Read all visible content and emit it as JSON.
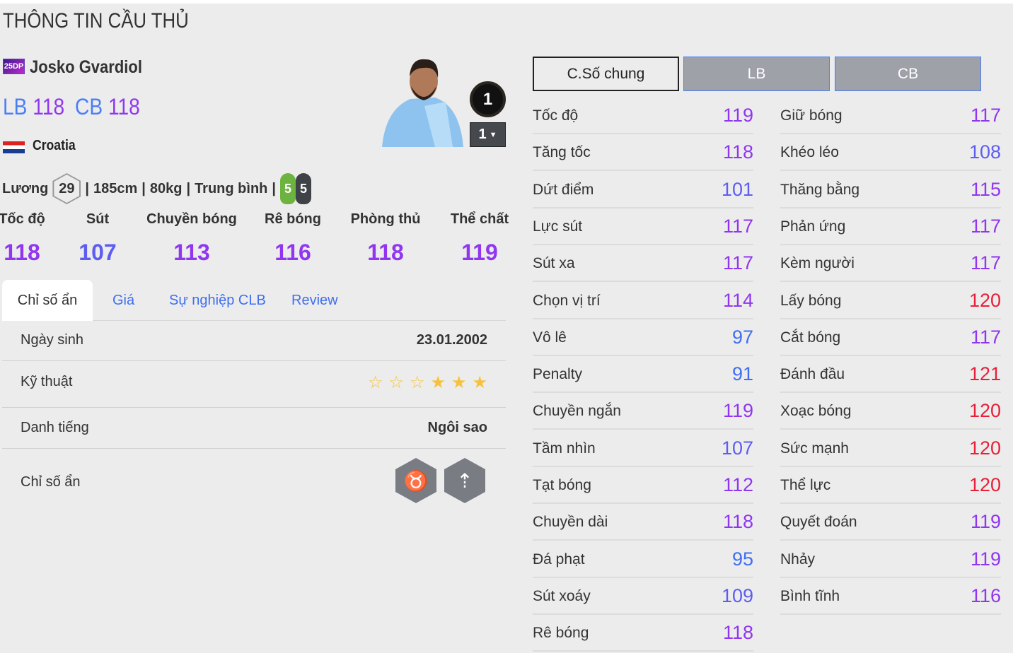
{
  "page_title": "THÔNG TIN CẦU THỦ",
  "player": {
    "season_badge": "25DP",
    "name": "Josko Gvardiol",
    "positions": [
      {
        "pos": "LB",
        "ovr": "118"
      },
      {
        "pos": "CB",
        "ovr": "118"
      }
    ],
    "nation": "Croatia",
    "salary_label": "Lương",
    "salary": "29",
    "height": "185cm",
    "weight": "80kg",
    "body_type": "Trung bình",
    "left_foot": "5",
    "right_foot": "5",
    "upgrade_level": "1",
    "upgrade_select": "1"
  },
  "main_stats": [
    {
      "label": "Tốc độ",
      "value": "118"
    },
    {
      "label": "Sút",
      "value": "107"
    },
    {
      "label": "Chuyền bóng",
      "value": "113"
    },
    {
      "label": "Rê bóng",
      "value": "116"
    },
    {
      "label": "Phòng thủ",
      "value": "118"
    },
    {
      "label": "Thể chất",
      "value": "119"
    }
  ],
  "tabs": [
    {
      "label": "Chỉ số ẩn",
      "active": true
    },
    {
      "label": "Giá"
    },
    {
      "label": "Sự nghiệp CLB"
    },
    {
      "label": "Review"
    }
  ],
  "info": {
    "birth_label": "Ngày sinh",
    "birth": "23.01.2002",
    "skill_label": "Kỹ thuật",
    "skill_stars": 3,
    "skill_max": 6,
    "fame_label": "Danh tiếng",
    "fame": "Ngôi sao",
    "traits_label": "Chỉ số ẩn",
    "traits": [
      "bull-icon",
      "power-header-icon"
    ]
  },
  "stat_tabs": [
    {
      "label": "C.Số chung",
      "active": true
    },
    {
      "label": "LB"
    },
    {
      "label": "CB"
    }
  ],
  "colors": {
    "tier_120": "#e8203a",
    "tier_110": "#9036f0",
    "tier_100": "#5d5df2",
    "tier_90": "#3e6ef5",
    "tab_link": "#3f6ff0"
  },
  "stats_left": [
    {
      "label": "Tốc độ",
      "value": "119"
    },
    {
      "label": "Tăng tốc",
      "value": "118"
    },
    {
      "label": "Dứt điểm",
      "value": "101"
    },
    {
      "label": "Lực sút",
      "value": "117"
    },
    {
      "label": "Sút xa",
      "value": "117"
    },
    {
      "label": "Chọn vị trí",
      "value": "114"
    },
    {
      "label": "Vô lê",
      "value": "97"
    },
    {
      "label": "Penalty",
      "value": "91"
    },
    {
      "label": "Chuyền ngắn",
      "value": "119"
    },
    {
      "label": "Tầm nhìn",
      "value": "107"
    },
    {
      "label": "Tạt bóng",
      "value": "112"
    },
    {
      "label": "Chuyền dài",
      "value": "118"
    },
    {
      "label": "Đá phạt",
      "value": "95"
    },
    {
      "label": "Sút xoáy",
      "value": "109"
    },
    {
      "label": "Rê bóng",
      "value": "118"
    }
  ],
  "stats_right": [
    {
      "label": "Giữ bóng",
      "value": "117"
    },
    {
      "label": "Khéo léo",
      "value": "108"
    },
    {
      "label": "Thăng bằng",
      "value": "115"
    },
    {
      "label": "Phản ứng",
      "value": "117"
    },
    {
      "label": "Kèm người",
      "value": "117"
    },
    {
      "label": "Lấy bóng",
      "value": "120"
    },
    {
      "label": "Cắt bóng",
      "value": "117"
    },
    {
      "label": "Đánh đầu",
      "value": "121"
    },
    {
      "label": "Xoạc bóng",
      "value": "120"
    },
    {
      "label": "Sức mạnh",
      "value": "120"
    },
    {
      "label": "Thể lực",
      "value": "120"
    },
    {
      "label": "Quyết đoán",
      "value": "119"
    },
    {
      "label": "Nhảy",
      "value": "119"
    },
    {
      "label": "Bình tĩnh",
      "value": "116"
    }
  ]
}
